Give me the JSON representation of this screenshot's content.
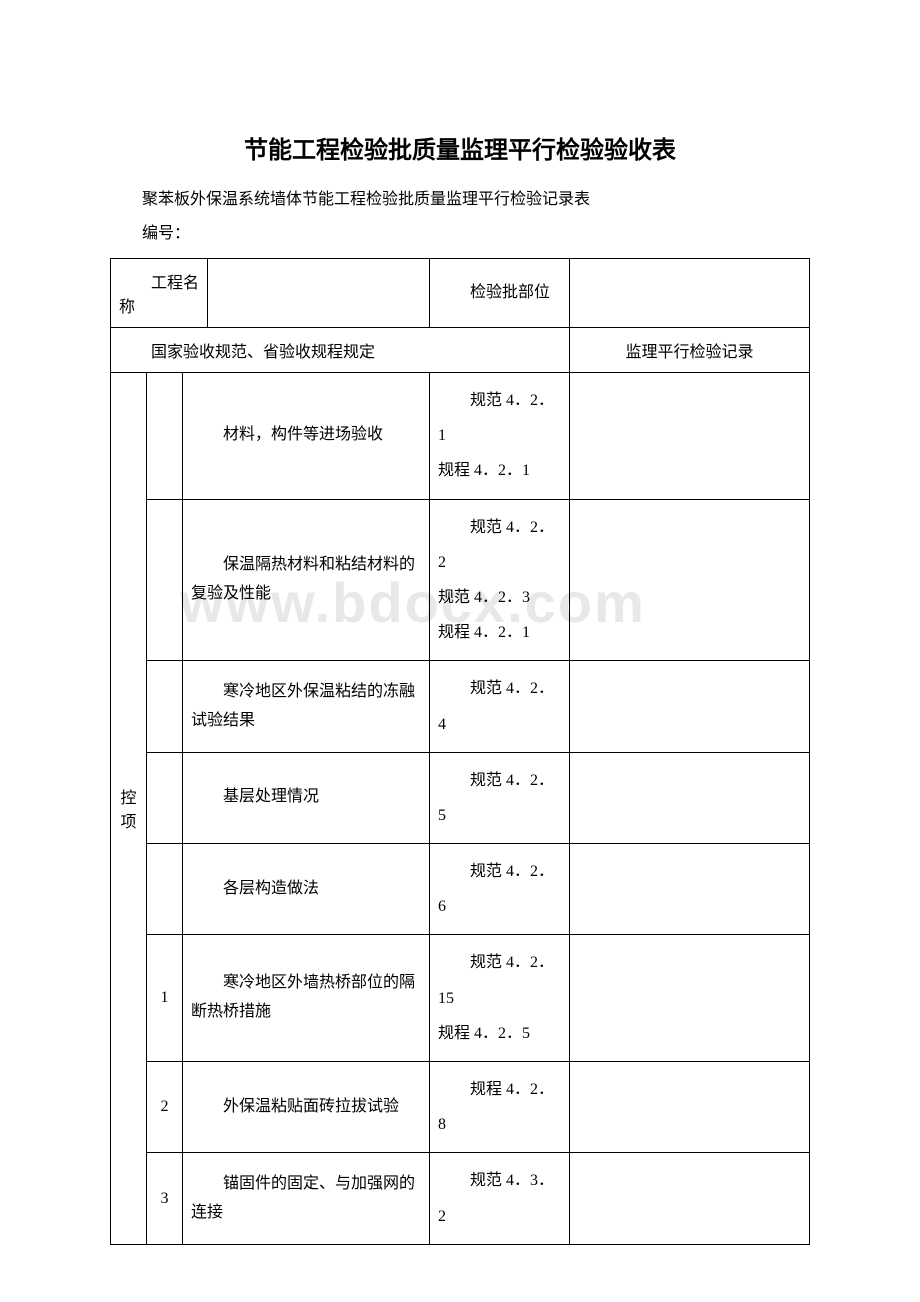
{
  "title": "节能工程检验批质量监理平行检验验收表",
  "subtitle": "聚苯板外保温系统墙体节能工程检验批质量监理平行检验记录表",
  "numbering_label": "编号：",
  "watermark": "www.bdocx.com",
  "header_row": {
    "project_name_label": "工程名称",
    "project_name_value": "",
    "batch_label": "检验批部位",
    "batch_value": ""
  },
  "regulation_header": {
    "left": "国家验收规范、省验收规程规定",
    "right": "监理平行检验记录"
  },
  "section_label": "控项",
  "rows": [
    {
      "num": "",
      "item": "材料，构件等进场验收",
      "spec": "规范 4．2．1\n规程 4．2．1",
      "record": ""
    },
    {
      "num": "",
      "item": "保温隔热材料和粘结材料的复验及性能",
      "spec": "规范 4．2．2\n规范 4．2．3\n规程 4．2．1",
      "record": ""
    },
    {
      "num": "",
      "item": "寒冷地区外保温粘结的冻融试验结果",
      "spec": "规范 4．2．4",
      "record": ""
    },
    {
      "num": "",
      "item": "基层处理情况",
      "spec": "规范 4．2．5",
      "record": ""
    },
    {
      "num": "",
      "item": "各层构造做法",
      "spec": "规范 4．2．6",
      "record": ""
    },
    {
      "num": "1",
      "item": "寒冷地区外墙热桥部位的隔断热桥措施",
      "spec": "规范 4．2．15\n规程 4．2．5",
      "record": ""
    },
    {
      "num": "2",
      "item": "外保温粘贴面砖拉拔试验",
      "spec": "规程 4．2．8",
      "record": ""
    },
    {
      "num": "3",
      "item": "锚固件的固定、与加强网的连接",
      "spec": "规范 4．3．2",
      "record": ""
    }
  ]
}
